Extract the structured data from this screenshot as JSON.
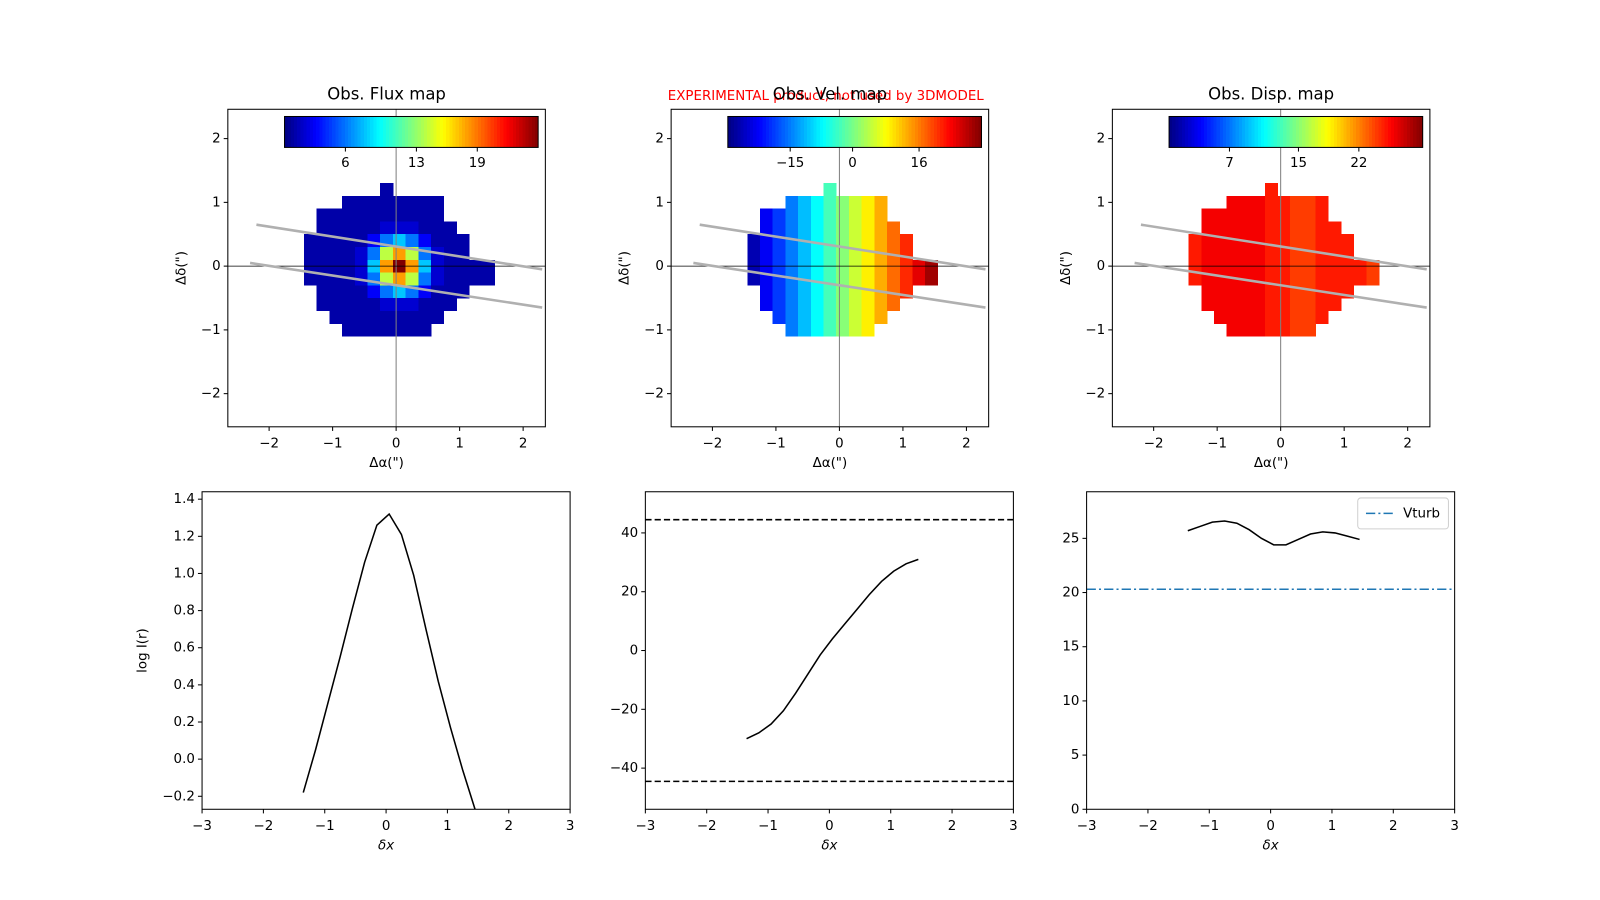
{
  "suptitle": "EXPERIMENTAL product, not used by 3DMODEL",
  "suptitle_color": "#ff0000",
  "chart_data": [
    {
      "type": "heatmap",
      "title": "Obs. Flux map",
      "xlabel": "Δα(\")",
      "ylabel": "Δδ(\")",
      "xlim": [
        -2.65,
        2.35
      ],
      "ylim": [
        -2.52,
        2.46
      ],
      "xticks": [
        {
          "value": -2,
          "label": "−2"
        },
        {
          "value": -1,
          "label": "−1"
        },
        0,
        1,
        2
      ],
      "yticks": [
        {
          "value": -2,
          "label": "−2"
        },
        {
          "value": -1,
          "label": "−1"
        },
        0,
        1,
        2
      ],
      "x": [
        -1.35,
        -1.15,
        -0.95,
        -0.75,
        -0.55,
        -0.35,
        -0.15,
        0.05,
        0.25,
        0.45,
        0.65,
        0.85,
        1.05,
        1.25,
        1.45
      ],
      "y": [
        1.2,
        1.0,
        0.8,
        0.6,
        0.4,
        0.2,
        0.0,
        -0.2,
        -0.4,
        -0.6,
        -0.8,
        -1.0
      ],
      "values": [
        [
          null,
          null,
          null,
          null,
          null,
          null,
          1,
          null,
          null,
          null,
          null,
          null,
          null,
          null,
          null
        ],
        [
          null,
          null,
          null,
          1,
          1,
          1,
          1,
          1,
          1,
          1,
          1,
          null,
          null,
          null,
          null
        ],
        [
          null,
          1,
          1,
          1,
          1,
          1,
          1,
          1,
          1,
          1,
          1,
          null,
          null,
          null,
          null
        ],
        [
          null,
          1,
          1,
          1,
          1,
          1,
          2,
          2,
          2,
          1,
          1,
          1,
          null,
          null,
          null
        ],
        [
          1,
          1,
          1,
          1,
          1,
          3,
          6,
          8,
          6,
          3,
          1,
          1,
          1,
          null,
          null
        ],
        [
          1,
          1,
          1,
          1,
          2,
          6,
          14,
          18,
          14,
          6,
          2,
          1,
          1,
          null,
          null
        ],
        [
          1,
          1,
          1,
          1,
          2,
          8,
          18,
          25,
          18,
          8,
          2,
          1,
          1,
          1,
          1
        ],
        [
          1,
          1,
          1,
          1,
          2,
          6,
          14,
          18,
          14,
          6,
          2,
          1,
          1,
          1,
          1
        ],
        [
          null,
          1,
          1,
          1,
          1,
          3,
          6,
          8,
          6,
          3,
          1,
          1,
          1,
          null,
          null
        ],
        [
          null,
          1,
          1,
          1,
          1,
          1,
          2,
          2,
          2,
          1,
          1,
          1,
          null,
          null,
          null
        ],
        [
          null,
          null,
          1,
          1,
          1,
          1,
          1,
          1,
          1,
          1,
          1,
          null,
          null,
          null,
          null
        ],
        [
          null,
          null,
          null,
          1,
          1,
          1,
          1,
          1,
          1,
          1,
          null,
          null,
          null,
          null,
          null
        ]
      ],
      "colormap": "jet",
      "colorbar": {
        "clim": [
          0,
          25
        ],
        "ticks": [
          6,
          13,
          19
        ]
      },
      "lines": [
        {
          "x": [
            -2.2,
            2.3
          ],
          "y": [
            0.65,
            -0.05
          ],
          "color": "#b0b0b0"
        },
        {
          "x": [
            -2.3,
            2.3
          ],
          "y": [
            0.05,
            -0.65
          ],
          "color": "#b0b0b0"
        }
      ],
      "axvline": {
        "value": 0,
        "color": "#808080"
      },
      "axhline": {
        "value": 0,
        "color": "#000000"
      }
    },
    {
      "type": "heatmap",
      "title": "Obs. Vel. map",
      "xlabel": "Δα(\")",
      "ylabel": "Δδ(\")",
      "xlim": [
        -2.65,
        2.35
      ],
      "ylim": [
        -2.52,
        2.46
      ],
      "xticks": [
        {
          "value": -2,
          "label": "−2"
        },
        {
          "value": -1,
          "label": "−1"
        },
        0,
        1,
        2
      ],
      "yticks": [
        {
          "value": -2,
          "label": "−2"
        },
        {
          "value": -1,
          "label": "−1"
        },
        0,
        1,
        2
      ],
      "x": [
        -1.35,
        -1.15,
        -0.95,
        -0.75,
        -0.55,
        -0.35,
        -0.15,
        0.05,
        0.25,
        0.45,
        0.65,
        0.85,
        1.05,
        1.25,
        1.45
      ],
      "y": [
        1.2,
        1.0,
        0.8,
        0.6,
        0.4,
        0.2,
        0.0,
        -0.2,
        -0.4,
        -0.6,
        -0.8,
        -1.0
      ],
      "values": [
        [
          null,
          null,
          null,
          null,
          null,
          null,
          -3,
          null,
          null,
          null,
          null,
          null,
          null,
          null,
          null
        ],
        [
          null,
          null,
          null,
          -15,
          -11,
          -7,
          -3,
          1,
          5,
          9,
          13,
          null,
          null,
          null,
          null
        ],
        [
          null,
          -23,
          -19,
          -15,
          -11,
          -7,
          -3,
          1,
          5,
          9,
          13,
          null,
          null,
          null,
          null
        ],
        [
          null,
          -23,
          -19,
          -15,
          -11,
          -7,
          -3,
          1,
          5,
          9,
          13,
          17,
          null,
          null,
          null
        ],
        [
          -27,
          -23,
          -19,
          -15,
          -11,
          -7,
          -3,
          1,
          5,
          9,
          13,
          17,
          21,
          null,
          null
        ],
        [
          -27,
          -23,
          -19,
          -15,
          -11,
          -7,
          -3,
          1,
          5,
          9,
          13,
          17,
          21,
          null,
          null
        ],
        [
          -27,
          -23,
          -19,
          -15,
          -11,
          -7,
          -3,
          1,
          5,
          9,
          13,
          17,
          21,
          25,
          29
        ],
        [
          -27,
          -23,
          -19,
          -15,
          -11,
          -7,
          -3,
          1,
          5,
          9,
          13,
          17,
          21,
          25,
          29
        ],
        [
          null,
          -23,
          -19,
          -15,
          -11,
          -7,
          -3,
          1,
          5,
          9,
          13,
          17,
          21,
          null,
          null
        ],
        [
          null,
          -23,
          -19,
          -15,
          -11,
          -7,
          -3,
          1,
          5,
          9,
          13,
          17,
          null,
          null,
          null
        ],
        [
          null,
          null,
          -19,
          -15,
          -11,
          -7,
          -3,
          1,
          5,
          9,
          13,
          null,
          null,
          null,
          null
        ],
        [
          null,
          null,
          null,
          -15,
          -11,
          -7,
          -3,
          1,
          5,
          9,
          null,
          null,
          null,
          null,
          null
        ]
      ],
      "colormap": "jet",
      "colorbar": {
        "clim": [
          -30,
          31
        ],
        "ticks": [
          {
            "value": -15,
            "label": "−15"
          },
          0,
          16
        ]
      },
      "lines": [
        {
          "x": [
            -2.2,
            2.3
          ],
          "y": [
            0.65,
            -0.05
          ],
          "color": "#b0b0b0"
        },
        {
          "x": [
            -2.3,
            2.3
          ],
          "y": [
            0.05,
            -0.65
          ],
          "color": "#b0b0b0"
        }
      ],
      "axvline": {
        "value": 0,
        "color": "#808080"
      },
      "axhline": {
        "value": 0,
        "color": "#000000"
      }
    },
    {
      "type": "heatmap",
      "title": "Obs. Disp. map",
      "xlabel": "Δα(\")",
      "ylabel": "Δδ(\")",
      "xlim": [
        -2.65,
        2.35
      ],
      "ylim": [
        -2.52,
        2.46
      ],
      "xticks": [
        {
          "value": -2,
          "label": "−2"
        },
        {
          "value": -1,
          "label": "−1"
        },
        0,
        1,
        2
      ],
      "yticks": [
        {
          "value": -2,
          "label": "−2"
        },
        {
          "value": -1,
          "label": "−1"
        },
        0,
        1,
        2
      ],
      "x": [
        -1.35,
        -1.15,
        -0.95,
        -0.75,
        -0.55,
        -0.35,
        -0.15,
        0.05,
        0.25,
        0.45,
        0.65,
        0.85,
        1.05,
        1.25,
        1.45
      ],
      "y": [
        1.2,
        1.0,
        0.8,
        0.6,
        0.4,
        0.2,
        0.0,
        -0.2,
        -0.4,
        -0.6,
        -0.8,
        -1.0
      ],
      "values": [
        [
          null,
          null,
          null,
          null,
          null,
          null,
          25,
          null,
          null,
          null,
          null,
          null,
          null,
          null,
          null
        ],
        [
          null,
          null,
          null,
          26,
          26,
          26,
          25,
          25,
          24,
          24,
          25,
          null,
          null,
          null,
          null
        ],
        [
          null,
          26,
          26,
          26,
          26,
          26,
          25,
          25,
          24,
          24,
          25,
          null,
          null,
          null,
          null
        ],
        [
          null,
          26,
          26,
          26,
          26,
          26,
          25,
          25,
          24,
          24,
          25,
          25,
          null,
          null,
          null
        ],
        [
          25,
          26,
          26,
          26,
          26,
          26,
          25,
          25,
          24,
          24,
          25,
          25,
          25,
          null,
          null
        ],
        [
          25,
          26,
          26,
          26,
          26,
          26,
          25,
          25,
          24,
          24,
          25,
          25,
          25,
          null,
          null
        ],
        [
          25,
          26,
          26,
          26,
          26,
          26,
          25,
          25,
          24,
          24,
          25,
          25,
          25,
          25,
          24
        ],
        [
          25,
          26,
          26,
          26,
          26,
          26,
          25,
          25,
          24,
          24,
          25,
          25,
          25,
          25,
          24
        ],
        [
          null,
          26,
          26,
          26,
          26,
          26,
          25,
          25,
          24,
          24,
          25,
          25,
          25,
          null,
          null
        ],
        [
          null,
          26,
          26,
          26,
          26,
          26,
          25,
          25,
          24,
          24,
          25,
          25,
          null,
          null,
          null
        ],
        [
          null,
          null,
          26,
          26,
          26,
          26,
          25,
          25,
          24,
          24,
          25,
          null,
          null,
          null,
          null
        ],
        [
          null,
          null,
          null,
          26,
          26,
          26,
          25,
          25,
          24,
          24,
          null,
          null,
          null,
          null,
          null
        ]
      ],
      "colormap": "jet",
      "colorbar": {
        "clim": [
          0,
          29.4
        ],
        "ticks": [
          7,
          15,
          22
        ]
      },
      "lines": [
        {
          "x": [
            -2.2,
            2.3
          ],
          "y": [
            0.65,
            -0.05
          ],
          "color": "#b0b0b0"
        },
        {
          "x": [
            -2.3,
            2.3
          ],
          "y": [
            0.05,
            -0.65
          ],
          "color": "#b0b0b0"
        }
      ],
      "axvline": {
        "value": 0,
        "color": "#808080"
      },
      "axhline": {
        "value": 0,
        "color": "#000000"
      }
    },
    {
      "type": "line",
      "xlabel": "δx",
      "ylabel": "log I(r)",
      "xlim": [
        -3,
        3
      ],
      "ylim": [
        -0.27,
        1.44
      ],
      "xticks": [
        {
          "value": -3,
          "label": "−3"
        },
        {
          "value": -2,
          "label": "−2"
        },
        {
          "value": -1,
          "label": "−1"
        },
        0,
        1,
        2,
        3
      ],
      "yticks": [
        {
          "value": -0.2,
          "label": "−0.2"
        },
        {
          "value": 0,
          "label": "0.0"
        },
        0.2,
        0.4,
        0.6,
        0.8,
        {
          "value": 1,
          "label": "1.0"
        },
        1.2,
        1.4
      ],
      "x": [
        -1.35,
        -1.15,
        -0.95,
        -0.75,
        -0.55,
        -0.35,
        -0.15,
        0.05,
        0.25,
        0.45,
        0.65,
        0.85,
        1.05,
        1.25,
        1.45
      ],
      "series": [
        {
          "color": "#000000",
          "values": [
            -0.18,
            0.05,
            0.3,
            0.55,
            0.81,
            1.06,
            1.26,
            1.32,
            1.21,
            0.99,
            0.7,
            0.42,
            0.17,
            -0.06,
            -0.27
          ]
        }
      ]
    },
    {
      "type": "line",
      "xlabel": "δx",
      "xlim": [
        -3,
        3
      ],
      "ylim": [
        -54,
        54
      ],
      "xticks": [
        {
          "value": -3,
          "label": "−3"
        },
        {
          "value": -2,
          "label": "−2"
        },
        {
          "value": -1,
          "label": "−1"
        },
        0,
        1,
        2,
        3
      ],
      "yticks": [
        {
          "value": -40,
          "label": "−40"
        },
        {
          "value": -20,
          "label": "−20"
        },
        0,
        20,
        40
      ],
      "x": [
        -1.35,
        -1.15,
        -0.95,
        -0.75,
        -0.55,
        -0.35,
        -0.15,
        0.05,
        0.25,
        0.45,
        0.65,
        0.85,
        1.05,
        1.25,
        1.45
      ],
      "series": [
        {
          "color": "#000000",
          "values": [
            -30,
            -28,
            -25,
            -20.5,
            -14.5,
            -8,
            -1.5,
            4,
            9,
            14,
            19,
            23.5,
            27,
            29.5,
            31
          ]
        }
      ],
      "hlines": [
        {
          "value": 44.5,
          "color": "#000000",
          "dash": "dashed"
        },
        {
          "value": -44.5,
          "color": "#000000",
          "dash": "dashed"
        }
      ]
    },
    {
      "type": "line",
      "xlabel": "δx",
      "xlim": [
        -3,
        3
      ],
      "ylim": [
        0,
        29.3
      ],
      "xticks": [
        {
          "value": -3,
          "label": "−3"
        },
        {
          "value": -2,
          "label": "−2"
        },
        {
          "value": -1,
          "label": "−1"
        },
        0,
        1,
        2,
        3
      ],
      "yticks": [
        0,
        5,
        10,
        15,
        20,
        25
      ],
      "x": [
        -1.35,
        -1.15,
        -0.95,
        -0.75,
        -0.55,
        -0.35,
        -0.15,
        0.05,
        0.25,
        0.45,
        0.65,
        0.85,
        1.05,
        1.25,
        1.45
      ],
      "series": [
        {
          "color": "#000000",
          "values": [
            25.7,
            26.1,
            26.5,
            26.6,
            26.4,
            25.8,
            25.0,
            24.4,
            24.4,
            24.9,
            25.4,
            25.6,
            25.5,
            25.2,
            24.9
          ]
        }
      ],
      "hlines": [
        {
          "name": "Vturb",
          "value": 20.3,
          "color": "#1f77b4",
          "dash": "dashdot"
        }
      ],
      "legend": "upper right"
    }
  ]
}
